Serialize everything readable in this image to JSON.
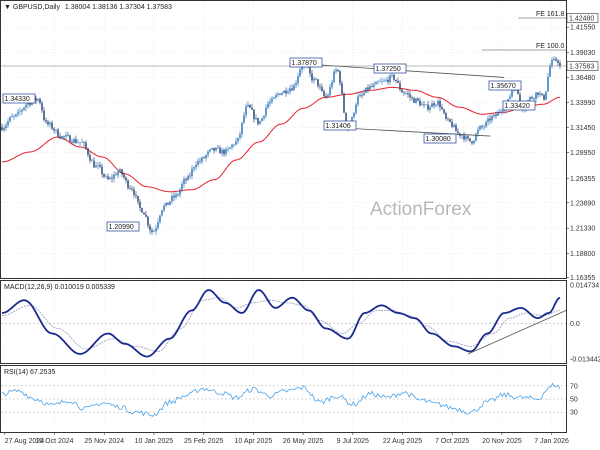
{
  "header": {
    "title": "GBPUSD,Daily",
    "ohlc": "1.38004 1.38136 1.37304 1.37583"
  },
  "watermark": "ActionForex",
  "colors": {
    "up": "#1f6fb8",
    "down": "#1d3a6e",
    "ma": "#e8202a",
    "macd": "#1a2a8e",
    "signal": "#a0a0c8",
    "rsi": "#4da3e8",
    "grid": "#dddddd",
    "trend": "#555555"
  },
  "chart_data": [
    {
      "type": "candlestick",
      "title": "GBPUSD,Daily",
      "ylim": [
        1.1632,
        1.4409
      ],
      "y_ticks": [
        "1.44190",
        "1.41550",
        "1.39030",
        "1.36480",
        "1.33990",
        "1.31450",
        "1.28950",
        "1.26355",
        "1.23890",
        "1.21330",
        "1.18800",
        "1.16355"
      ],
      "x_ticks": [
        "27 Aug 2024",
        "10 Oct 2024",
        "25 Nov 2024",
        "10 Jan 2025",
        "25 Feb 2025",
        "10 Apr 2025",
        "26 May 2025",
        "9 Jul 2025",
        "22 Aug 2025",
        "7 Oct 2025",
        "20 Nov 2025",
        "7 Jan 2026"
      ],
      "anchors": [
        {
          "t": 0,
          "v": 1.315
        },
        {
          "t": 0.02,
          "v": 1.325
        },
        {
          "t": 0.05,
          "v": 1.34
        },
        {
          "t": 0.065,
          "v": 1.3433
        },
        {
          "t": 0.08,
          "v": 1.318
        },
        {
          "t": 0.11,
          "v": 1.305
        },
        {
          "t": 0.14,
          "v": 1.3
        },
        {
          "t": 0.17,
          "v": 1.275
        },
        {
          "t": 0.19,
          "v": 1.262
        },
        {
          "t": 0.21,
          "v": 1.27
        },
        {
          "t": 0.23,
          "v": 1.255
        },
        {
          "t": 0.25,
          "v": 1.232
        },
        {
          "t": 0.27,
          "v": 1.2099
        },
        {
          "t": 0.29,
          "v": 1.235
        },
        {
          "t": 0.31,
          "v": 1.245
        },
        {
          "t": 0.33,
          "v": 1.262
        },
        {
          "t": 0.35,
          "v": 1.28
        },
        {
          "t": 0.38,
          "v": 1.292
        },
        {
          "t": 0.4,
          "v": 1.29
        },
        {
          "t": 0.42,
          "v": 1.3
        },
        {
          "t": 0.44,
          "v": 1.335
        },
        {
          "t": 0.46,
          "v": 1.32
        },
        {
          "t": 0.48,
          "v": 1.34
        },
        {
          "t": 0.5,
          "v": 1.35
        },
        {
          "t": 0.52,
          "v": 1.355
        },
        {
          "t": 0.54,
          "v": 1.3787
        },
        {
          "t": 0.56,
          "v": 1.362
        },
        {
          "t": 0.58,
          "v": 1.345
        },
        {
          "t": 0.6,
          "v": 1.3725
        },
        {
          "t": 0.62,
          "v": 1.314
        },
        {
          "t": 0.64,
          "v": 1.345
        },
        {
          "t": 0.66,
          "v": 1.355
        },
        {
          "t": 0.68,
          "v": 1.36
        },
        {
          "t": 0.7,
          "v": 1.365
        },
        {
          "t": 0.72,
          "v": 1.35
        },
        {
          "t": 0.74,
          "v": 1.342
        },
        {
          "t": 0.76,
          "v": 1.335
        },
        {
          "t": 0.78,
          "v": 1.34
        },
        {
          "t": 0.8,
          "v": 1.32
        },
        {
          "t": 0.82,
          "v": 1.308
        },
        {
          "t": 0.84,
          "v": 1.3008
        },
        {
          "t": 0.86,
          "v": 1.315
        },
        {
          "t": 0.88,
          "v": 1.325
        },
        {
          "t": 0.9,
          "v": 1.335
        },
        {
          "t": 0.92,
          "v": 1.3567
        },
        {
          "t": 0.93,
          "v": 1.3342
        },
        {
          "t": 0.95,
          "v": 1.345
        },
        {
          "t": 0.96,
          "v": 1.35
        },
        {
          "t": 0.97,
          "v": 1.344
        },
        {
          "t": 0.985,
          "v": 1.38
        },
        {
          "t": 0.995,
          "v": 1.383
        },
        {
          "t": 1.0,
          "v": 1.37583
        }
      ],
      "ma_anchors": [
        {
          "t": 0,
          "v": 1.28
        },
        {
          "t": 0.05,
          "v": 1.29
        },
        {
          "t": 0.1,
          "v": 1.305
        },
        {
          "t": 0.14,
          "v": 1.295
        },
        {
          "t": 0.18,
          "v": 1.285
        },
        {
          "t": 0.22,
          "v": 1.268
        },
        {
          "t": 0.26,
          "v": 1.255
        },
        {
          "t": 0.3,
          "v": 1.25
        },
        {
          "t": 0.34,
          "v": 1.252
        },
        {
          "t": 0.38,
          "v": 1.262
        },
        {
          "t": 0.42,
          "v": 1.282
        },
        {
          "t": 0.46,
          "v": 1.3
        },
        {
          "t": 0.5,
          "v": 1.318
        },
        {
          "t": 0.54,
          "v": 1.334
        },
        {
          "t": 0.58,
          "v": 1.345
        },
        {
          "t": 0.62,
          "v": 1.348
        },
        {
          "t": 0.66,
          "v": 1.352
        },
        {
          "t": 0.7,
          "v": 1.355
        },
        {
          "t": 0.74,
          "v": 1.352
        },
        {
          "t": 0.78,
          "v": 1.345
        },
        {
          "t": 0.82,
          "v": 1.335
        },
        {
          "t": 0.86,
          "v": 1.328
        },
        {
          "t": 0.9,
          "v": 1.33
        },
        {
          "t": 0.94,
          "v": 1.336
        },
        {
          "t": 0.97,
          "v": 1.338
        },
        {
          "t": 1.0,
          "v": 1.345
        }
      ],
      "price_labels": [
        {
          "text": "1.34330",
          "t": 0.01,
          "v": 1.3433
        },
        {
          "text": "1.31406",
          "t": 0.615,
          "v": 1.314
        },
        {
          "text": "1.30080",
          "t": 0.835,
          "v": 1.3008
        },
        {
          "text": "1.20990",
          "t": 0.27,
          "v": 1.2099
        },
        {
          "text": "1.37870",
          "t": 0.535,
          "v": 1.3787
        },
        {
          "text": "1.37250",
          "t": 0.645,
          "v": 1.3725
        },
        {
          "text": "1.35670",
          "t": 0.915,
          "v": 1.3567
        },
        {
          "text": "1.33420",
          "t": 0.93,
          "v": 1.3342
        }
      ],
      "fib_levels": [
        {
          "text": "FE 161.8",
          "v": 1.448,
          "t_start": 0.925
        },
        {
          "text": "FE 100.0",
          "v": 1.395,
          "t_start": 0.86
        }
      ],
      "markers": [
        {
          "text": "1.42480",
          "v": 1.4248
        },
        {
          "text": "1.37583",
          "v": 1.37583
        }
      ],
      "trendlines": [
        {
          "t1": 0.54,
          "v1": 1.3787,
          "t2": 0.9,
          "v2": 1.365
        },
        {
          "t1": 0.615,
          "v1": 1.314,
          "t2": 0.875,
          "v2": 1.306
        }
      ]
    },
    {
      "type": "line",
      "title": "MACD(12,26,9) 0.010019 0.005339",
      "ylim": [
        -0.0155,
        0.0165
      ],
      "y_ticks": [
        "0.014734",
        "0.0",
        "-0.013442"
      ],
      "macd_anchors": [
        {
          "t": 0,
          "v": 0.004
        },
        {
          "t": 0.04,
          "v": 0.009
        },
        {
          "t": 0.09,
          "v": -0.004
        },
        {
          "t": 0.14,
          "v": -0.012
        },
        {
          "t": 0.19,
          "v": -0.004
        },
        {
          "t": 0.22,
          "v": -0.008
        },
        {
          "t": 0.26,
          "v": -0.013
        },
        {
          "t": 0.3,
          "v": -0.006
        },
        {
          "t": 0.34,
          "v": 0.005
        },
        {
          "t": 0.37,
          "v": 0.013
        },
        {
          "t": 0.4,
          "v": 0.008
        },
        {
          "t": 0.43,
          "v": 0.004
        },
        {
          "t": 0.46,
          "v": 0.013
        },
        {
          "t": 0.49,
          "v": 0.006
        },
        {
          "t": 0.52,
          "v": 0.01
        },
        {
          "t": 0.55,
          "v": 0.005
        },
        {
          "t": 0.58,
          "v": -0.002
        },
        {
          "t": 0.62,
          "v": -0.006
        },
        {
          "t": 0.65,
          "v": 0.004
        },
        {
          "t": 0.68,
          "v": 0.007
        },
        {
          "t": 0.71,
          "v": 0.004
        },
        {
          "t": 0.74,
          "v": 0.002
        },
        {
          "t": 0.77,
          "v": -0.004
        },
        {
          "t": 0.81,
          "v": -0.009
        },
        {
          "t": 0.84,
          "v": -0.011
        },
        {
          "t": 0.87,
          "v": -0.004
        },
        {
          "t": 0.9,
          "v": 0.004
        },
        {
          "t": 0.93,
          "v": 0.006
        },
        {
          "t": 0.96,
          "v": 0.002
        },
        {
          "t": 0.98,
          "v": 0.004
        },
        {
          "t": 1.0,
          "v": 0.01
        }
      ],
      "signal_anchors": [
        {
          "t": 0,
          "v": 0.003
        },
        {
          "t": 0.05,
          "v": 0.007
        },
        {
          "t": 0.1,
          "v": -0.002
        },
        {
          "t": 0.15,
          "v": -0.01
        },
        {
          "t": 0.2,
          "v": -0.006
        },
        {
          "t": 0.24,
          "v": -0.009
        },
        {
          "t": 0.28,
          "v": -0.011
        },
        {
          "t": 0.32,
          "v": -0.002
        },
        {
          "t": 0.36,
          "v": 0.009
        },
        {
          "t": 0.39,
          "v": 0.01
        },
        {
          "t": 0.42,
          "v": 0.006
        },
        {
          "t": 0.45,
          "v": 0.008
        },
        {
          "t": 0.48,
          "v": 0.009
        },
        {
          "t": 0.51,
          "v": 0.008
        },
        {
          "t": 0.54,
          "v": 0.007
        },
        {
          "t": 0.57,
          "v": 0.001
        },
        {
          "t": 0.61,
          "v": -0.004
        },
        {
          "t": 0.64,
          "v": 0.0
        },
        {
          "t": 0.67,
          "v": 0.005
        },
        {
          "t": 0.7,
          "v": 0.005
        },
        {
          "t": 0.73,
          "v": 0.003
        },
        {
          "t": 0.76,
          "v": -0.001
        },
        {
          "t": 0.8,
          "v": -0.007
        },
        {
          "t": 0.84,
          "v": -0.009
        },
        {
          "t": 0.88,
          "v": -0.004
        },
        {
          "t": 0.91,
          "v": 0.002
        },
        {
          "t": 0.94,
          "v": 0.004
        },
        {
          "t": 0.97,
          "v": 0.003
        },
        {
          "t": 1.0,
          "v": 0.005
        }
      ],
      "trendline": {
        "t1": 0.835,
        "v1": -0.012,
        "t2": 1.0,
        "v2": 0.004
      }
    },
    {
      "type": "line",
      "title": "RSI(14) 67.2535",
      "ylim": [
        0,
        100
      ],
      "y_ticks": [
        "70",
        "50",
        "30"
      ],
      "rsi_anchors": [
        {
          "t": 0,
          "v": 58
        },
        {
          "t": 0.03,
          "v": 62
        },
        {
          "t": 0.06,
          "v": 50
        },
        {
          "t": 0.09,
          "v": 40
        },
        {
          "t": 0.12,
          "v": 48
        },
        {
          "t": 0.15,
          "v": 35
        },
        {
          "t": 0.18,
          "v": 44
        },
        {
          "t": 0.21,
          "v": 38
        },
        {
          "t": 0.24,
          "v": 30
        },
        {
          "t": 0.27,
          "v": 26
        },
        {
          "t": 0.3,
          "v": 45
        },
        {
          "t": 0.33,
          "v": 55
        },
        {
          "t": 0.36,
          "v": 66
        },
        {
          "t": 0.39,
          "v": 60
        },
        {
          "t": 0.42,
          "v": 52
        },
        {
          "t": 0.45,
          "v": 65
        },
        {
          "t": 0.48,
          "v": 55
        },
        {
          "t": 0.51,
          "v": 62
        },
        {
          "t": 0.54,
          "v": 67
        },
        {
          "t": 0.57,
          "v": 45
        },
        {
          "t": 0.6,
          "v": 55
        },
        {
          "t": 0.63,
          "v": 42
        },
        {
          "t": 0.66,
          "v": 58
        },
        {
          "t": 0.69,
          "v": 52
        },
        {
          "t": 0.72,
          "v": 60
        },
        {
          "t": 0.75,
          "v": 48
        },
        {
          "t": 0.78,
          "v": 42
        },
        {
          "t": 0.81,
          "v": 36
        },
        {
          "t": 0.84,
          "v": 30
        },
        {
          "t": 0.87,
          "v": 45
        },
        {
          "t": 0.9,
          "v": 56
        },
        {
          "t": 0.93,
          "v": 52
        },
        {
          "t": 0.96,
          "v": 50
        },
        {
          "t": 0.98,
          "v": 66
        },
        {
          "t": 0.99,
          "v": 72
        },
        {
          "t": 1.0,
          "v": 67.25
        }
      ]
    }
  ]
}
